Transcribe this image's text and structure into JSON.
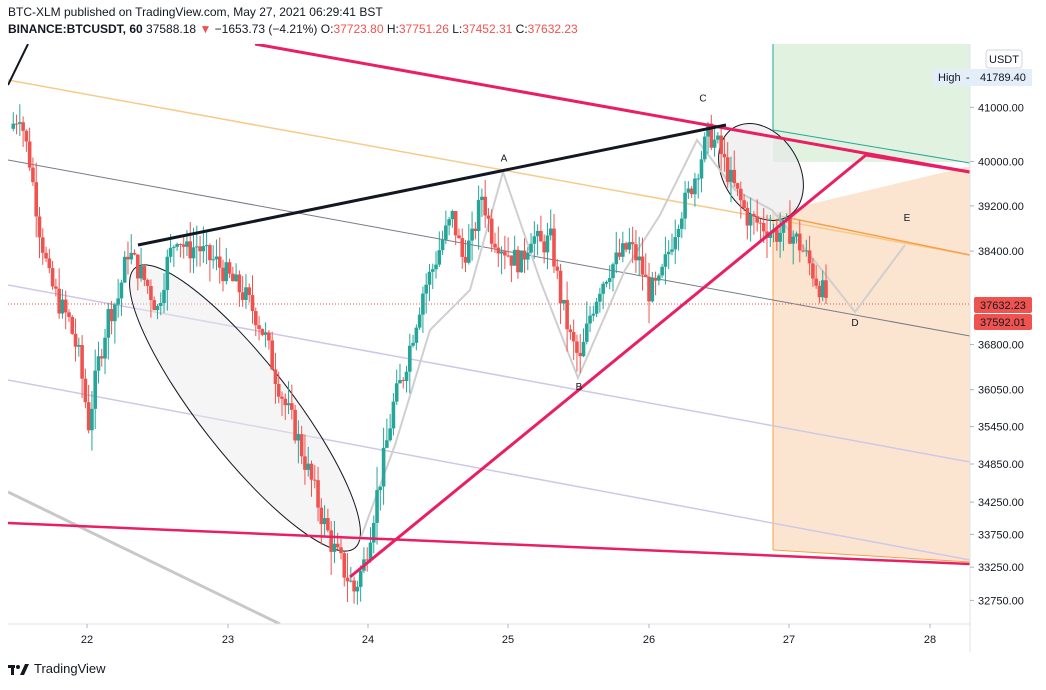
{
  "header": {
    "publish_line": "BTC-XLM published on TradingView.com, May 27, 2021 06:29:41 BST",
    "symbol": "BINANCE:BTCUSDT, 60",
    "last": "37588.18",
    "arrow": "▼",
    "change": "−1653.73 (−4.21%)",
    "o_label": "O:",
    "o_value": "37723.80",
    "h_label": "H:",
    "h_value": "37751.26",
    "l_label": "L:",
    "l_value": "37452.31",
    "c_label": "C:",
    "c_value": "37632.23"
  },
  "footer": {
    "brand": "TradingView",
    "logo_icon": "tradingview-logo-icon"
  },
  "price_axis": {
    "currency": "USDT",
    "high_label": "High",
    "high_value": "41789.40",
    "price_tag_1": "37632.23",
    "price_tag_2": "37592.01"
  },
  "colors": {
    "up": "#26a69a",
    "down": "#ef5350",
    "trendline": "#e91e63",
    "pattern": "#131722",
    "target_box": "#fbe0c8",
    "stop_box": "#dcf0dc"
  },
  "chart_data": {
    "type": "candlestick",
    "y_scale": "log",
    "ylim": [
      32400,
      42200
    ],
    "y_ticks": [
      32750,
      33250,
      33750,
      34250,
      34850,
      35450,
      36050,
      36800,
      38400,
      39200,
      40000,
      41000
    ],
    "y_tick_labels": [
      "32750.00",
      "33250.00",
      "33750.00",
      "34250.00",
      "34850.00",
      "35450.00",
      "36050.00",
      "36800.00",
      "38400.00",
      "39200.00",
      "40000.00",
      "41000.00"
    ],
    "x_ticks": [
      "22",
      "23",
      "24",
      "25",
      "26",
      "27",
      "28"
    ],
    "pattern_points": [
      {
        "label": "A",
        "price": 39820
      },
      {
        "label": "B",
        "price": 36280
      },
      {
        "label": "C",
        "price": 40880
      },
      {
        "label": "D",
        "price": 37350
      },
      {
        "label": "E",
        "price": 38750
      }
    ],
    "price_path": [
      40600,
      40900,
      40000,
      38800,
      37900,
      37500,
      37200,
      36600,
      35500,
      36500,
      37300,
      37600,
      38400,
      38100,
      37800,
      37400,
      38200,
      38700,
      38400,
      38500,
      38300,
      38200,
      38000,
      37800,
      37600,
      37300,
      36900,
      36300,
      35800,
      35400,
      34900,
      34400,
      33900,
      33500,
      33200,
      32900,
      33300,
      34100,
      34900,
      35800,
      36300,
      37000,
      37700,
      38100,
      38600,
      39000,
      38300,
      38600,
      39400,
      38700,
      38500,
      38300,
      38200,
      38700,
      38500,
      38600,
      37600,
      36900,
      36500,
      37300,
      37800,
      38100,
      38300,
      38500,
      38200,
      37700,
      37800,
      38400,
      39000,
      39400,
      39900,
      40500,
      40300,
      39800,
      39400,
      39000,
      38900,
      38800,
      38700,
      38800,
      38600,
      38300,
      37900,
      37600
    ]
  }
}
